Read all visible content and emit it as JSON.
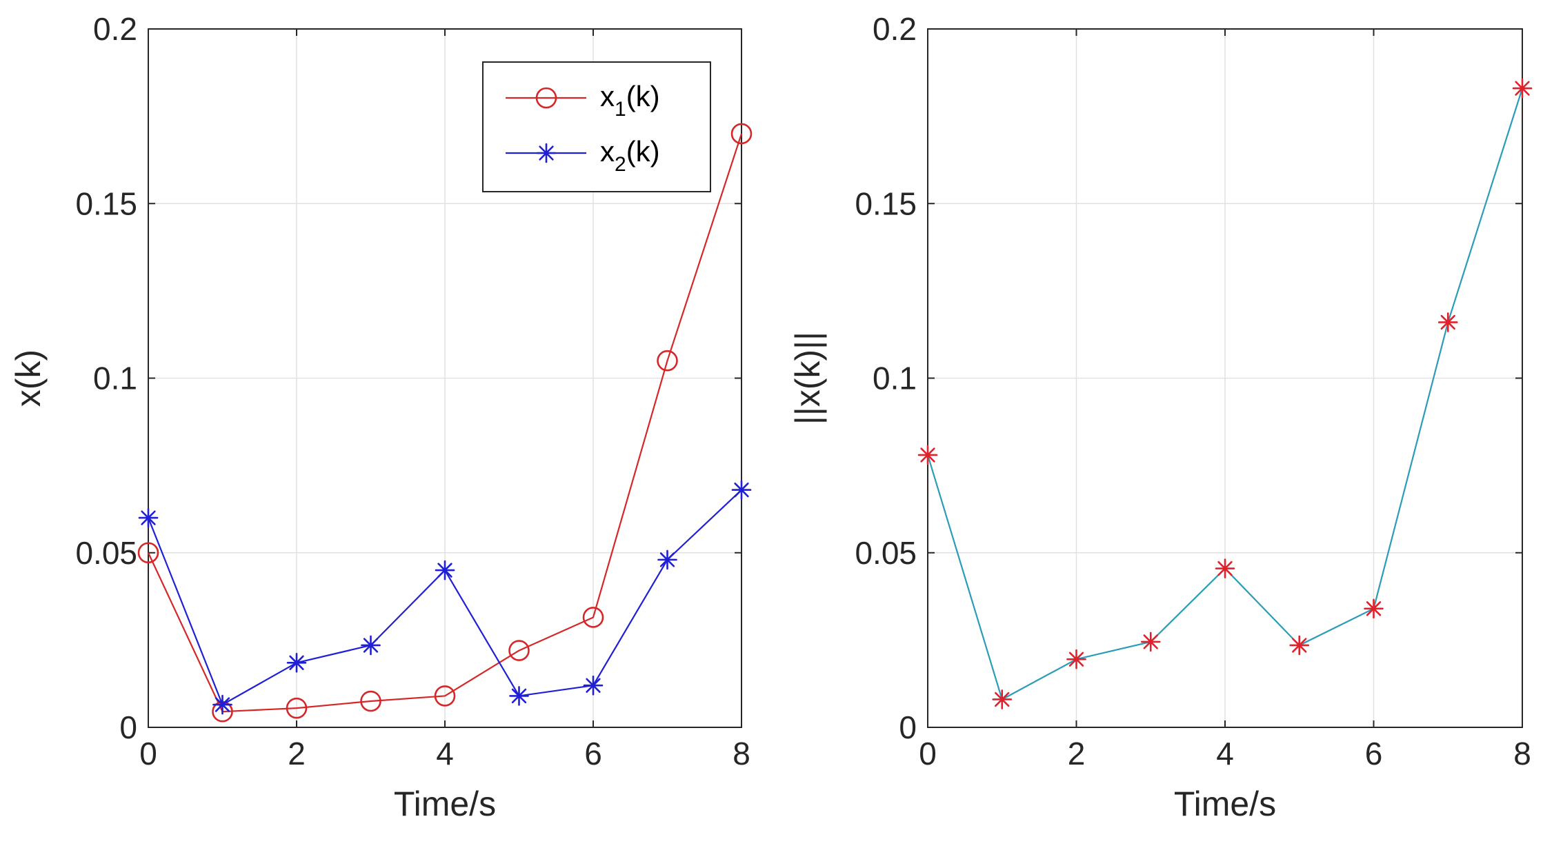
{
  "chart_data": [
    {
      "type": "line",
      "title": "",
      "xlabel": "Time/s",
      "ylabel": "x(k)",
      "xlim": [
        0,
        8
      ],
      "ylim": [
        0,
        0.2
      ],
      "xticks": [
        0,
        2,
        4,
        6,
        8
      ],
      "xtick_labels": [
        "0",
        "2",
        "4",
        "6",
        "8"
      ],
      "yticks": [
        0,
        0.05,
        0.1,
        0.15,
        0.2
      ],
      "ytick_labels": [
        "0",
        "0.05",
        "0.1",
        "0.15",
        "0.2"
      ],
      "grid": true,
      "legend_position": "top-right",
      "x": [
        0,
        1,
        2,
        3,
        4,
        5,
        6,
        7,
        8
      ],
      "series": [
        {
          "name": "x1(k)",
          "legend_main": "x",
          "legend_sub": "1",
          "legend_tail": "(k)",
          "color": "#d62728",
          "marker": "circle",
          "values": [
            0.05,
            0.0045,
            0.0055,
            0.0075,
            0.009,
            0.022,
            0.0315,
            0.105,
            0.17
          ]
        },
        {
          "name": "x2(k)",
          "legend_main": "x",
          "legend_sub": "2",
          "legend_tail": "(k)",
          "color": "#1f1fd6",
          "marker": "asterisk",
          "values": [
            0.06,
            0.0065,
            0.0185,
            0.0235,
            0.045,
            0.009,
            0.012,
            0.048,
            0.068
          ]
        }
      ]
    },
    {
      "type": "line",
      "title": "",
      "xlabel": "Time/s",
      "ylabel": "||x(k)||",
      "xlim": [
        0,
        8
      ],
      "ylim": [
        0,
        0.2
      ],
      "xticks": [
        0,
        2,
        4,
        6,
        8
      ],
      "xtick_labels": [
        "0",
        "2",
        "4",
        "6",
        "8"
      ],
      "yticks": [
        0,
        0.05,
        0.1,
        0.15,
        0.2
      ],
      "ytick_labels": [
        "0",
        "0.05",
        "0.1",
        "0.15",
        "0.2"
      ],
      "grid": true,
      "x": [
        0,
        1,
        2,
        3,
        4,
        5,
        6,
        7,
        8
      ],
      "series": [
        {
          "name": "||x(k)||",
          "color": "#2a9cb8",
          "marker_color": "#e0202a",
          "marker": "asterisk",
          "values": [
            0.078,
            0.008,
            0.0195,
            0.0245,
            0.0455,
            0.0235,
            0.034,
            0.116,
            0.183
          ]
        }
      ]
    }
  ]
}
